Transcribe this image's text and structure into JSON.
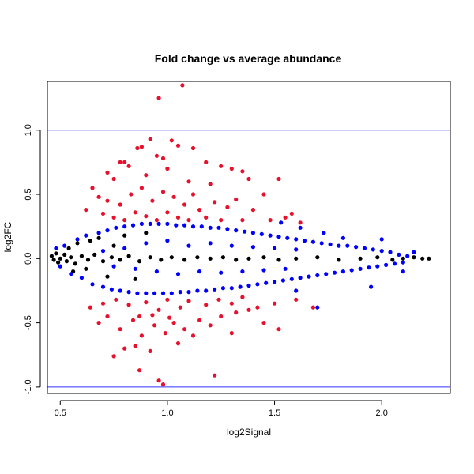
{
  "chart_data": {
    "type": "scatter",
    "title": "Fold change vs average abundance",
    "xlabel": "log2Signal",
    "ylabel": "log2FC",
    "xlim": [
      0.44,
      2.32
    ],
    "ylim": [
      -1.05,
      1.38
    ],
    "x_ticks": [
      0.5,
      1.0,
      1.5,
      2.0
    ],
    "x_tick_labels": [
      "0.5",
      "1.0",
      "1.5",
      "2.0"
    ],
    "y_ticks": [
      -1.0,
      -0.5,
      0.0,
      0.5,
      1.0
    ],
    "y_tick_labels": [
      "-1.0",
      "-0.5",
      "0.0",
      "0.5",
      "1.0"
    ],
    "grid": false,
    "reference_lines": {
      "orientation": "horizontal",
      "y": [
        1.0,
        -1.0
      ],
      "color": "#3333ff"
    },
    "series": [
      {
        "color": "#000000",
        "points": [
          [
            0.46,
            0.02
          ],
          [
            0.47,
            -0.01
          ],
          [
            0.48,
            0.04
          ],
          [
            0.49,
            -0.03
          ],
          [
            0.5,
            0.0
          ],
          [
            0.52,
            0.03
          ],
          [
            0.53,
            -0.02
          ],
          [
            0.55,
            0.01
          ],
          [
            0.57,
            -0.04
          ],
          [
            0.6,
            0.02
          ],
          [
            0.63,
            -0.01
          ],
          [
            0.66,
            0.03
          ],
          [
            0.7,
            -0.02
          ],
          [
            0.74,
            0.01
          ],
          [
            0.78,
            -0.01
          ],
          [
            0.82,
            0.02
          ],
          [
            0.87,
            -0.02
          ],
          [
            0.92,
            0.01
          ],
          [
            0.97,
            -0.01
          ],
          [
            1.02,
            0.01
          ],
          [
            1.08,
            -0.01
          ],
          [
            1.14,
            0.01
          ],
          [
            1.2,
            0.0
          ],
          [
            1.26,
            0.01
          ],
          [
            1.32,
            -0.01
          ],
          [
            1.38,
            0.0
          ],
          [
            1.45,
            0.01
          ],
          [
            1.52,
            -0.01
          ],
          [
            1.6,
            0.0
          ],
          [
            1.7,
            0.01
          ],
          [
            1.8,
            -0.01
          ],
          [
            1.9,
            0.0
          ],
          [
            1.98,
            0.01
          ],
          [
            2.05,
            -0.01
          ],
          [
            2.1,
            0.0
          ],
          [
            2.15,
            0.01
          ],
          [
            2.19,
            0.0
          ],
          [
            2.22,
            0.0
          ],
          [
            0.58,
            0.12
          ],
          [
            0.62,
            -0.08
          ],
          [
            0.68,
            0.16
          ],
          [
            0.72,
            -0.14
          ],
          [
            0.8,
            0.18
          ],
          [
            0.85,
            -0.16
          ],
          [
            0.9,
            0.2
          ],
          [
            0.75,
            0.1
          ],
          [
            0.64,
            0.14
          ],
          [
            0.56,
            -0.1
          ],
          [
            0.54,
            0.08
          ]
        ]
      },
      {
        "color": "#0000ff",
        "points": [
          [
            0.48,
            0.08
          ],
          [
            0.5,
            -0.06
          ],
          [
            0.52,
            0.1
          ],
          [
            0.55,
            -0.12
          ],
          [
            0.58,
            0.15
          ],
          [
            0.6,
            -0.15
          ],
          [
            0.62,
            0.18
          ],
          [
            0.65,
            -0.2
          ],
          [
            0.68,
            0.2
          ],
          [
            0.7,
            -0.22
          ],
          [
            0.72,
            0.22
          ],
          [
            0.74,
            -0.24
          ],
          [
            0.76,
            0.24
          ],
          [
            0.78,
            -0.25
          ],
          [
            0.8,
            0.25
          ],
          [
            0.82,
            -0.26
          ],
          [
            0.84,
            0.26
          ],
          [
            0.86,
            -0.27
          ],
          [
            0.88,
            0.27
          ],
          [
            0.9,
            -0.27
          ],
          [
            0.92,
            0.27
          ],
          [
            0.94,
            -0.27
          ],
          [
            0.96,
            0.27
          ],
          [
            0.98,
            -0.27
          ],
          [
            1.0,
            0.27
          ],
          [
            1.02,
            -0.27
          ],
          [
            1.04,
            0.26
          ],
          [
            1.06,
            -0.26
          ],
          [
            1.08,
            0.26
          ],
          [
            1.1,
            -0.26
          ],
          [
            1.12,
            0.25
          ],
          [
            1.14,
            -0.25
          ],
          [
            1.16,
            0.25
          ],
          [
            1.18,
            -0.25
          ],
          [
            1.2,
            0.24
          ],
          [
            1.22,
            -0.24
          ],
          [
            1.24,
            0.24
          ],
          [
            1.26,
            -0.23
          ],
          [
            1.28,
            0.23
          ],
          [
            1.3,
            -0.23
          ],
          [
            1.32,
            0.22
          ],
          [
            1.34,
            -0.22
          ],
          [
            1.36,
            0.21
          ],
          [
            1.38,
            -0.21
          ],
          [
            1.4,
            0.2
          ],
          [
            1.42,
            -0.2
          ],
          [
            1.44,
            0.19
          ],
          [
            1.46,
            -0.19
          ],
          [
            1.48,
            0.18
          ],
          [
            1.5,
            -0.18
          ],
          [
            1.52,
            0.17
          ],
          [
            1.54,
            -0.17
          ],
          [
            1.56,
            0.16
          ],
          [
            1.58,
            -0.16
          ],
          [
            1.6,
            0.15
          ],
          [
            1.62,
            -0.15
          ],
          [
            1.64,
            0.14
          ],
          [
            1.66,
            -0.14
          ],
          [
            1.68,
            0.13
          ],
          [
            1.7,
            -0.13
          ],
          [
            1.72,
            0.12
          ],
          [
            1.74,
            -0.12
          ],
          [
            1.76,
            0.11
          ],
          [
            1.78,
            -0.11
          ],
          [
            1.8,
            0.1
          ],
          [
            1.82,
            -0.1
          ],
          [
            1.84,
            0.1
          ],
          [
            1.86,
            -0.09
          ],
          [
            1.88,
            0.09
          ],
          [
            1.9,
            -0.08
          ],
          [
            1.92,
            0.08
          ],
          [
            1.94,
            -0.07
          ],
          [
            1.96,
            0.07
          ],
          [
            1.98,
            -0.06
          ],
          [
            2.0,
            0.06
          ],
          [
            2.02,
            -0.05
          ],
          [
            2.04,
            0.05
          ],
          [
            2.06,
            -0.04
          ],
          [
            2.08,
            0.03
          ],
          [
            2.1,
            -0.03
          ],
          [
            2.12,
            0.02
          ],
          [
            0.9,
            0.12
          ],
          [
            0.95,
            -0.1
          ],
          [
            1.0,
            0.14
          ],
          [
            1.05,
            -0.12
          ],
          [
            1.1,
            0.1
          ],
          [
            1.15,
            -0.1
          ],
          [
            1.2,
            0.12
          ],
          [
            1.25,
            -0.11
          ],
          [
            1.3,
            0.1
          ],
          [
            1.35,
            -0.1
          ],
          [
            1.4,
            0.09
          ],
          [
            1.45,
            -0.09
          ],
          [
            1.5,
            0.08
          ],
          [
            1.55,
            -0.08
          ],
          [
            1.6,
            0.07
          ],
          [
            0.7,
            0.06
          ],
          [
            0.75,
            -0.06
          ],
          [
            0.8,
            0.08
          ],
          [
            0.85,
            -0.08
          ],
          [
            1.53,
            0.28
          ],
          [
            1.6,
            -0.25
          ],
          [
            1.62,
            0.24
          ],
          [
            1.7,
            -0.38
          ],
          [
            1.73,
            0.2
          ],
          [
            1.82,
            0.16
          ],
          [
            1.95,
            -0.22
          ],
          [
            2.0,
            0.15
          ],
          [
            2.1,
            -0.1
          ],
          [
            2.15,
            0.05
          ]
        ]
      },
      {
        "color": "#e8112d",
        "points": [
          [
            0.96,
            1.25
          ],
          [
            1.07,
            1.35
          ],
          [
            0.92,
            0.93
          ],
          [
            1.02,
            0.92
          ],
          [
            0.86,
            0.86
          ],
          [
            0.88,
            0.87
          ],
          [
            1.12,
            0.86
          ],
          [
            0.78,
            0.75
          ],
          [
            0.8,
            0.75
          ],
          [
            0.82,
            0.72
          ],
          [
            0.95,
            0.8
          ],
          [
            0.98,
            0.78
          ],
          [
            1.05,
            0.88
          ],
          [
            1.18,
            0.75
          ],
          [
            1.25,
            0.72
          ],
          [
            1.3,
            0.7
          ],
          [
            1.35,
            0.68
          ],
          [
            0.72,
            0.67
          ],
          [
            0.75,
            0.62
          ],
          [
            0.9,
            0.65
          ],
          [
            1.0,
            0.7
          ],
          [
            1.1,
            0.6
          ],
          [
            1.2,
            0.58
          ],
          [
            1.38,
            0.62
          ],
          [
            1.45,
            0.5
          ],
          [
            1.52,
            0.62
          ],
          [
            0.65,
            0.55
          ],
          [
            0.68,
            0.48
          ],
          [
            0.72,
            0.45
          ],
          [
            0.78,
            0.42
          ],
          [
            0.83,
            0.5
          ],
          [
            0.88,
            0.55
          ],
          [
            0.93,
            0.45
          ],
          [
            0.98,
            0.52
          ],
          [
            1.03,
            0.48
          ],
          [
            1.08,
            0.42
          ],
          [
            1.12,
            0.5
          ],
          [
            1.15,
            0.38
          ],
          [
            1.22,
            0.44
          ],
          [
            1.28,
            0.4
          ],
          [
            1.32,
            0.46
          ],
          [
            1.4,
            0.38
          ],
          [
            1.48,
            0.3
          ],
          [
            1.55,
            0.32
          ],
          [
            1.58,
            0.35
          ],
          [
            1.62,
            0.28
          ],
          [
            0.62,
            0.38
          ],
          [
            0.7,
            0.35
          ],
          [
            0.75,
            0.32
          ],
          [
            0.8,
            0.3
          ],
          [
            0.85,
            0.36
          ],
          [
            0.9,
            0.33
          ],
          [
            0.95,
            0.3
          ],
          [
            1.0,
            0.36
          ],
          [
            1.05,
            0.32
          ],
          [
            1.1,
            0.3
          ],
          [
            1.18,
            0.32
          ],
          [
            1.25,
            0.3
          ],
          [
            1.35,
            0.3
          ],
          [
            0.96,
            -0.95
          ],
          [
            0.98,
            -0.98
          ],
          [
            1.22,
            -0.91
          ],
          [
            0.87,
            -0.87
          ],
          [
            0.75,
            -0.76
          ],
          [
            0.8,
            -0.7
          ],
          [
            0.85,
            -0.68
          ],
          [
            0.92,
            -0.72
          ],
          [
            1.05,
            -0.66
          ],
          [
            1.12,
            -0.6
          ],
          [
            1.3,
            -0.58
          ],
          [
            1.45,
            -0.5
          ],
          [
            1.52,
            -0.55
          ],
          [
            0.68,
            -0.5
          ],
          [
            0.72,
            -0.45
          ],
          [
            0.78,
            -0.55
          ],
          [
            0.84,
            -0.48
          ],
          [
            0.88,
            -0.6
          ],
          [
            0.94,
            -0.52
          ],
          [
            0.99,
            -0.58
          ],
          [
            1.03,
            -0.5
          ],
          [
            1.08,
            -0.55
          ],
          [
            1.15,
            -0.48
          ],
          [
            1.2,
            -0.52
          ],
          [
            1.25,
            -0.45
          ],
          [
            1.32,
            -0.42
          ],
          [
            1.38,
            -0.4
          ],
          [
            1.42,
            -0.38
          ],
          [
            1.5,
            -0.35
          ],
          [
            1.6,
            -0.32
          ],
          [
            1.68,
            -0.38
          ],
          [
            0.64,
            -0.38
          ],
          [
            0.7,
            -0.35
          ],
          [
            0.76,
            -0.32
          ],
          [
            0.82,
            -0.36
          ],
          [
            0.9,
            -0.34
          ],
          [
            0.96,
            -0.4
          ],
          [
            1.0,
            -0.32
          ],
          [
            1.06,
            -0.38
          ],
          [
            1.1,
            -0.33
          ],
          [
            1.18,
            -0.36
          ],
          [
            1.24,
            -0.32
          ],
          [
            1.3,
            -0.35
          ],
          [
            1.35,
            -0.3
          ],
          [
            0.87,
            -0.45
          ],
          [
            0.93,
            -0.44
          ],
          [
            1.01,
            -0.46
          ]
        ]
      }
    ]
  }
}
